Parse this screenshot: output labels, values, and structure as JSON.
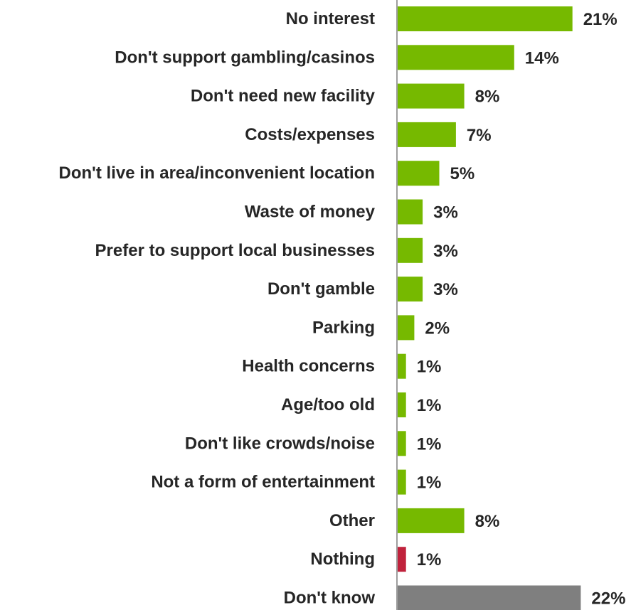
{
  "chart_data": {
    "type": "bar",
    "orientation": "horizontal",
    "title": "",
    "xlabel": "",
    "ylabel": "",
    "xlim": [
      0,
      22
    ],
    "grid": false,
    "legend": "none",
    "value_suffix": "%",
    "categories": [
      "No interest",
      "Don't support gambling/casinos",
      "Don't need new facility",
      "Costs/expenses",
      "Don't live in area/inconvenient location",
      "Waste of money",
      "Prefer to support local businesses",
      "Don't gamble",
      "Parking",
      "Health concerns",
      "Age/too old",
      "Don't like crowds/noise",
      "Not a form of entertainment",
      "Other",
      "Nothing",
      "Don't know"
    ],
    "values": [
      21,
      14,
      8,
      7,
      5,
      3,
      3,
      3,
      2,
      1,
      1,
      1,
      1,
      8,
      1,
      22
    ],
    "labels": [
      "21%",
      "14%",
      "8%",
      "7%",
      "5%",
      "3%",
      "3%",
      "3%",
      "2%",
      "1%",
      "1%",
      "1%",
      "1%",
      "8%",
      "1%",
      "22%"
    ],
    "bar_colors": [
      "#76b900",
      "#76b900",
      "#76b900",
      "#76b900",
      "#76b900",
      "#76b900",
      "#76b900",
      "#76b900",
      "#76b900",
      "#76b900",
      "#76b900",
      "#76b900",
      "#76b900",
      "#76b900",
      "#c0223c",
      "#7f7f7f"
    ],
    "axis_color": "#7f7f7f"
  }
}
